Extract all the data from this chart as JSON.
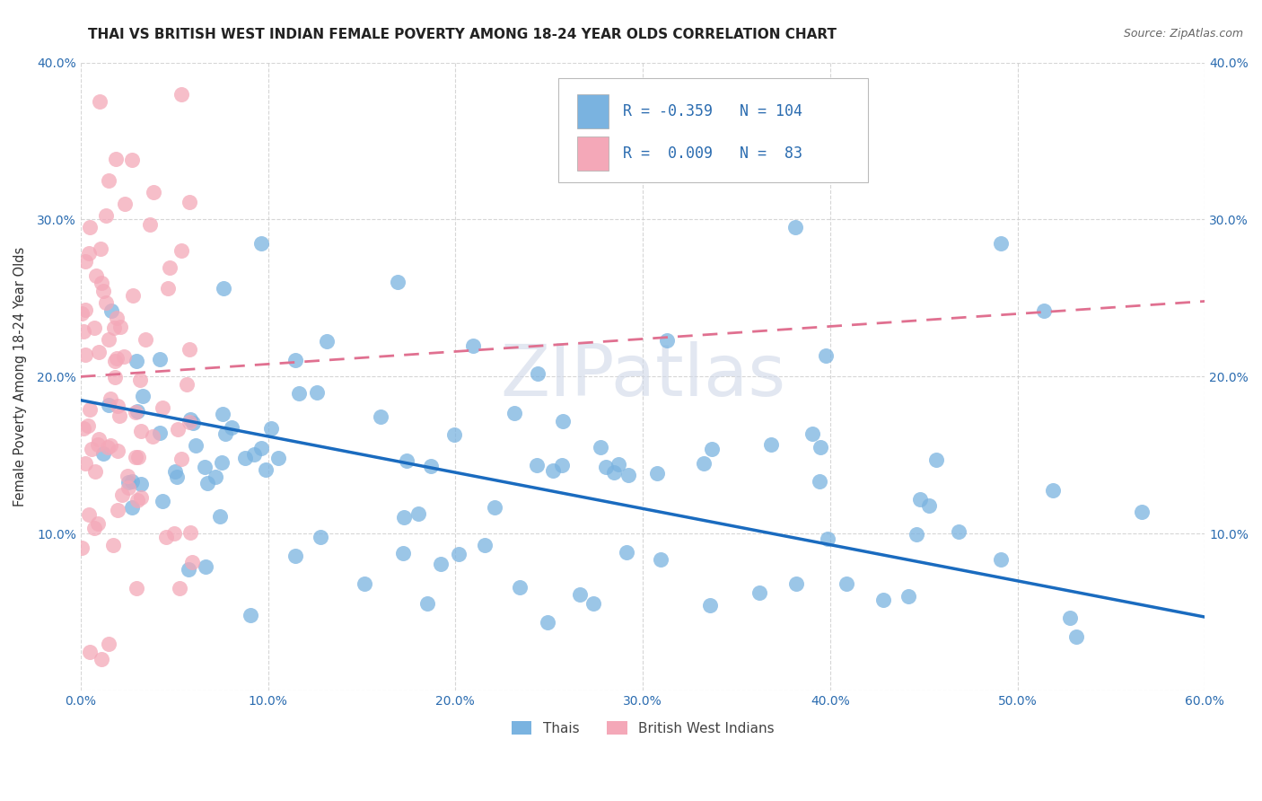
{
  "title": "THAI VS BRITISH WEST INDIAN FEMALE POVERTY AMONG 18-24 YEAR OLDS CORRELATION CHART",
  "source": "Source: ZipAtlas.com",
  "ylabel": "Female Poverty Among 18-24 Year Olds",
  "xlim": [
    0,
    0.6
  ],
  "ylim": [
    0,
    0.4
  ],
  "xticks": [
    0.0,
    0.1,
    0.2,
    0.3,
    0.4,
    0.5,
    0.6
  ],
  "yticks": [
    0.0,
    0.1,
    0.2,
    0.3,
    0.4
  ],
  "thai_color": "#7ab3e0",
  "bwi_color": "#f4a8b8",
  "thai_line_color": "#1a6bbf",
  "bwi_line_color": "#e07090",
  "legend_thai_R": "-0.359",
  "legend_thai_N": "104",
  "legend_bwi_R": "0.009",
  "legend_bwi_N": "83",
  "watermark": "ZIPatlas",
  "thai_line_x0": 0.0,
  "thai_line_y0": 0.185,
  "thai_line_x1": 0.6,
  "thai_line_y1": 0.047,
  "bwi_line_x0": 0.0,
  "bwi_line_y0": 0.2,
  "bwi_line_x1": 0.6,
  "bwi_line_y1": 0.248
}
